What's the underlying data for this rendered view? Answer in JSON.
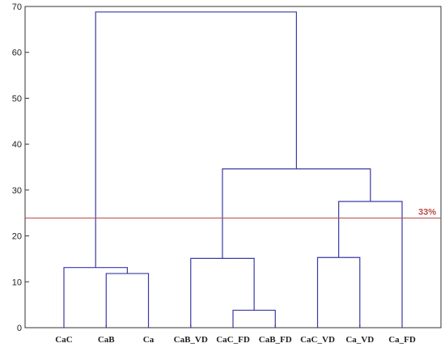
{
  "chart_data": {
    "type": "dendrogram",
    "title": "",
    "xlabel": "",
    "ylabel": "",
    "ylim": [
      0,
      70
    ],
    "yticks": [
      0,
      10,
      20,
      30,
      40,
      50,
      60,
      70
    ],
    "leaves": [
      "CaC",
      "CaB",
      "Ca",
      "CaB_VD",
      "CaC_FD",
      "CaB_FD",
      "CaC_VD",
      "Ca_VD",
      "Ca_FD"
    ],
    "merges": [
      {
        "left": "leaf:4",
        "right": "leaf:5",
        "height": 3.8
      },
      {
        "left": "leaf:1",
        "right": "leaf:2",
        "height": 11.8
      },
      {
        "left": "leaf:0",
        "right": "node:1",
        "height": 13.1
      },
      {
        "left": "leaf:3",
        "right": "node:0",
        "height": 15.1
      },
      {
        "left": "leaf:6",
        "right": "leaf:7",
        "height": 15.3
      },
      {
        "left": "node:4",
        "right": "leaf:8",
        "height": 27.5
      },
      {
        "left": "node:3",
        "right": "node:5",
        "height": 34.6
      },
      {
        "left": "node:2",
        "right": "node:6",
        "height": 68.8
      }
    ],
    "cutoff": {
      "value": 23.9,
      "label": "33%"
    },
    "colors": {
      "branch": "#3a3aa6",
      "cutoff": "#b84a4a",
      "axis": "#333333"
    }
  }
}
